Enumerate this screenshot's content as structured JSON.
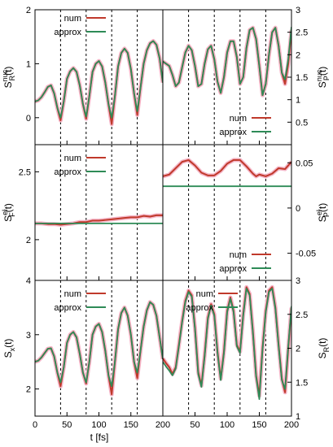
{
  "figure": {
    "xlabel": "t [fs]",
    "colors": {
      "num": "#c0392b",
      "approx": "#2e8b57",
      "glow": "#f4b6c8"
    },
    "vlines": [
      40,
      80,
      120,
      160
    ]
  },
  "chart_data": [
    {
      "id": "p11",
      "type": "line",
      "title": "",
      "ylabel": "S_R^{nuc}(t)",
      "ylabel_parts": {
        "base": "S",
        "sup": "nuc",
        "sub": "R",
        "tail": "(t)"
      },
      "xlim": [
        0,
        200
      ],
      "ylim": [
        -0.5,
        2
      ],
      "yticks": [
        0,
        1,
        2
      ],
      "xticks": [
        0,
        50,
        100,
        150,
        200
      ],
      "grid": false,
      "legend_position": "top-left",
      "series": [
        {
          "name": "num",
          "x": [
            0,
            5,
            10,
            15,
            20,
            25,
            30,
            35,
            40,
            45,
            50,
            55,
            60,
            65,
            70,
            75,
            80,
            85,
            90,
            95,
            100,
            105,
            110,
            115,
            120,
            125,
            130,
            135,
            140,
            145,
            150,
            155,
            160,
            165,
            170,
            175,
            180,
            185,
            190,
            195,
            200
          ],
          "y": [
            0.3,
            0.32,
            0.38,
            0.47,
            0.57,
            0.6,
            0.45,
            0.18,
            -0.05,
            0.3,
            0.72,
            0.86,
            0.92,
            0.85,
            0.6,
            0.25,
            -0.02,
            0.4,
            0.85,
            1.0,
            1.05,
            0.95,
            0.65,
            0.25,
            -0.12,
            0.4,
            0.95,
            1.2,
            1.28,
            1.2,
            0.9,
            0.45,
            0.05,
            0.55,
            1.0,
            1.25,
            1.38,
            1.42,
            1.35,
            1.1,
            0.65
          ]
        },
        {
          "name": "approx",
          "x": [
            0,
            5,
            10,
            15,
            20,
            25,
            30,
            35,
            40,
            45,
            50,
            55,
            60,
            65,
            70,
            75,
            80,
            85,
            90,
            95,
            100,
            105,
            110,
            115,
            120,
            125,
            130,
            135,
            140,
            145,
            150,
            155,
            160,
            165,
            170,
            175,
            180,
            185,
            190,
            195,
            200
          ],
          "y": [
            0.3,
            0.32,
            0.38,
            0.47,
            0.57,
            0.6,
            0.45,
            0.18,
            0.0,
            0.3,
            0.72,
            0.86,
            0.92,
            0.85,
            0.6,
            0.25,
            0.02,
            0.4,
            0.85,
            1.0,
            1.05,
            0.95,
            0.65,
            0.25,
            0.0,
            0.4,
            0.95,
            1.2,
            1.28,
            1.2,
            0.9,
            0.45,
            0.12,
            0.55,
            1.0,
            1.25,
            1.38,
            1.42,
            1.35,
            1.1,
            0.65
          ]
        }
      ]
    },
    {
      "id": "p12",
      "type": "line",
      "title": "",
      "ylabel": "S_P^{nuc}(t)",
      "ylabel_parts": {
        "base": "S",
        "sup": "nuc",
        "sub": "P",
        "tail": "(t)"
      },
      "xlim": [
        0,
        200
      ],
      "ylim": [
        0,
        3
      ],
      "yticks": [
        0.5,
        1,
        1.5,
        2,
        2.5,
        3
      ],
      "xticks": [
        0,
        50,
        100,
        150,
        200
      ],
      "grid": false,
      "legend_position": "bottom-right",
      "series": [
        {
          "name": "num",
          "x": [
            0,
            5,
            10,
            15,
            20,
            25,
            30,
            35,
            40,
            45,
            50,
            55,
            60,
            65,
            70,
            75,
            80,
            85,
            90,
            95,
            100,
            105,
            110,
            115,
            120,
            125,
            130,
            135,
            140,
            145,
            150,
            155,
            160,
            165,
            170,
            175,
            180,
            185,
            190,
            195,
            200
          ],
          "y": [
            1.85,
            1.8,
            1.75,
            1.55,
            1.3,
            1.38,
            1.72,
            2.05,
            2.2,
            2.1,
            1.75,
            1.3,
            1.35,
            1.8,
            2.12,
            2.2,
            1.9,
            1.4,
            1.15,
            1.5,
            2.05,
            2.3,
            2.3,
            1.95,
            1.35,
            1.5,
            2.15,
            2.55,
            2.6,
            2.35,
            1.75,
            1.1,
            1.35,
            2.0,
            2.5,
            2.6,
            2.2,
            1.6,
            1.35,
            1.8,
            2.55
          ]
        },
        {
          "name": "approx",
          "x": [
            0,
            5,
            10,
            15,
            20,
            25,
            30,
            35,
            40,
            45,
            50,
            55,
            60,
            65,
            70,
            75,
            80,
            85,
            90,
            95,
            100,
            105,
            110,
            115,
            120,
            125,
            130,
            135,
            140,
            145,
            150,
            155,
            160,
            165,
            170,
            175,
            180,
            185,
            190,
            195,
            200
          ],
          "y": [
            1.85,
            1.8,
            1.75,
            1.55,
            1.3,
            1.38,
            1.72,
            2.05,
            2.2,
            2.1,
            1.75,
            1.3,
            1.35,
            1.8,
            2.12,
            2.2,
            1.9,
            1.4,
            1.15,
            1.5,
            2.05,
            2.3,
            2.3,
            1.95,
            1.35,
            1.5,
            2.15,
            2.55,
            2.6,
            2.35,
            1.75,
            1.1,
            1.35,
            2.0,
            2.5,
            2.6,
            2.2,
            1.6,
            1.45,
            1.9,
            2.62
          ]
        }
      ]
    },
    {
      "id": "p21",
      "type": "line",
      "title": "",
      "ylabel": "S_F^{el}(t)",
      "ylabel_parts": {
        "base": "S",
        "sup": "el",
        "sub": "F",
        "tail": "(t)"
      },
      "xlim": [
        0,
        200
      ],
      "ylim": [
        1.7,
        2.7
      ],
      "yticks": [
        2,
        2.5
      ],
      "xticks": [
        0,
        50,
        100,
        150,
        200
      ],
      "grid": false,
      "legend_position": "top-left",
      "series": [
        {
          "name": "num",
          "x": [
            0,
            10,
            20,
            30,
            40,
            50,
            60,
            70,
            80,
            90,
            100,
            110,
            120,
            130,
            140,
            150,
            160,
            170,
            180,
            190,
            200
          ],
          "y": [
            2.12,
            2.12,
            2.115,
            2.115,
            2.11,
            2.115,
            2.12,
            2.13,
            2.13,
            2.14,
            2.14,
            2.145,
            2.15,
            2.155,
            2.16,
            2.165,
            2.165,
            2.175,
            2.17,
            2.18,
            2.18
          ]
        },
        {
          "name": "approx",
          "x": [
            0,
            50,
            100,
            150,
            200
          ],
          "y": [
            2.12,
            2.12,
            2.12,
            2.12,
            2.12
          ]
        }
      ]
    },
    {
      "id": "p22",
      "type": "line",
      "title": "",
      "ylabel": "S_P^{el}(t)",
      "ylabel_parts": {
        "base": "S",
        "sup": "el",
        "sub": "P",
        "tail": "(t)"
      },
      "xlim": [
        0,
        200
      ],
      "ylim": [
        -0.08,
        0.07
      ],
      "yticks": [
        -0.05,
        0,
        0.05
      ],
      "xticks": [
        0,
        50,
        100,
        150,
        200
      ],
      "grid": false,
      "legend_position": "bottom-right",
      "series": [
        {
          "name": "num",
          "x": [
            0,
            10,
            20,
            30,
            40,
            50,
            60,
            70,
            80,
            90,
            100,
            110,
            120,
            130,
            140,
            145,
            150,
            160,
            170,
            180,
            190,
            200
          ],
          "y": [
            0.035,
            0.037,
            0.044,
            0.051,
            0.053,
            0.047,
            0.039,
            0.036,
            0.036,
            0.041,
            0.049,
            0.053,
            0.053,
            0.046,
            0.038,
            0.035,
            0.037,
            0.035,
            0.038,
            0.044,
            0.043,
            0.051
          ]
        },
        {
          "name": "approx",
          "x": [
            0,
            50,
            100,
            150,
            200
          ],
          "y": [
            0.024,
            0.024,
            0.024,
            0.024,
            0.024
          ]
        }
      ]
    },
    {
      "id": "p31",
      "type": "line",
      "title": "",
      "ylabel": "S_x(t)",
      "ylabel_parts": {
        "base": "S",
        "sup": "",
        "sub": "x",
        "tail": "(t)"
      },
      "xlim": [
        0,
        200
      ],
      "ylim": [
        1.5,
        4
      ],
      "yticks": [
        2,
        3,
        4
      ],
      "xticks": [
        0,
        50,
        100,
        150,
        200
      ],
      "grid": false,
      "legend_position": "top-left",
      "series": [
        {
          "name": "num",
          "x": [
            0,
            5,
            10,
            15,
            20,
            25,
            30,
            35,
            40,
            45,
            50,
            55,
            60,
            65,
            70,
            75,
            80,
            85,
            90,
            95,
            100,
            105,
            110,
            115,
            120,
            125,
            130,
            135,
            140,
            145,
            150,
            155,
            160,
            165,
            170,
            175,
            180,
            185,
            190,
            195,
            200
          ],
          "y": [
            2.5,
            2.52,
            2.58,
            2.66,
            2.74,
            2.75,
            2.6,
            2.3,
            2.05,
            2.4,
            2.85,
            3.0,
            3.05,
            2.95,
            2.65,
            2.3,
            2.1,
            2.5,
            3.0,
            3.15,
            3.2,
            3.05,
            2.7,
            2.25,
            1.9,
            2.5,
            3.1,
            3.4,
            3.5,
            3.35,
            3.0,
            2.5,
            2.2,
            2.7,
            3.15,
            3.45,
            3.6,
            3.55,
            3.35,
            2.95,
            2.55
          ]
        },
        {
          "name": "approx",
          "x": [
            0,
            5,
            10,
            15,
            20,
            25,
            30,
            35,
            40,
            45,
            50,
            55,
            60,
            65,
            70,
            75,
            80,
            85,
            90,
            95,
            100,
            105,
            110,
            115,
            120,
            125,
            130,
            135,
            140,
            145,
            150,
            155,
            160,
            165,
            170,
            175,
            180,
            185,
            190,
            195,
            200
          ],
          "y": [
            2.5,
            2.52,
            2.58,
            2.66,
            2.74,
            2.75,
            2.6,
            2.3,
            2.12,
            2.4,
            2.85,
            3.0,
            3.05,
            2.95,
            2.65,
            2.3,
            2.12,
            2.5,
            3.0,
            3.15,
            3.2,
            3.05,
            2.7,
            2.25,
            2.05,
            2.5,
            3.1,
            3.4,
            3.5,
            3.35,
            3.0,
            2.5,
            2.3,
            2.7,
            3.15,
            3.45,
            3.6,
            3.55,
            3.35,
            2.95,
            2.55
          ]
        }
      ]
    },
    {
      "id": "p32",
      "type": "line",
      "title": "",
      "ylabel": "S_R(t)",
      "ylabel_parts": {
        "base": "S",
        "sup": "",
        "sub": "R",
        "tail": "(t)"
      },
      "xlim": [
        0,
        200
      ],
      "ylim": [
        1,
        3
      ],
      "yticks": [
        1,
        1.5,
        2,
        2.5,
        3
      ],
      "xticks": [
        0,
        50,
        100,
        150,
        200
      ],
      "grid": false,
      "legend_position": "top-left",
      "series": [
        {
          "name": "num",
          "x": [
            0,
            5,
            10,
            15,
            20,
            25,
            30,
            35,
            40,
            45,
            50,
            55,
            60,
            65,
            70,
            75,
            80,
            85,
            90,
            95,
            100,
            105,
            110,
            115,
            120,
            125,
            130,
            135,
            140,
            145,
            150,
            155,
            160,
            165,
            170,
            175,
            180,
            185,
            190,
            195,
            200
          ],
          "y": [
            1.85,
            1.78,
            1.72,
            1.62,
            1.72,
            2.05,
            2.4,
            2.7,
            2.85,
            2.78,
            2.3,
            1.65,
            1.45,
            1.9,
            2.45,
            2.65,
            2.5,
            1.95,
            1.55,
            1.95,
            2.55,
            2.75,
            2.55,
            2.05,
            1.95,
            2.5,
            2.9,
            2.8,
            2.25,
            1.6,
            1.3,
            2.0,
            2.55,
            2.85,
            2.9,
            2.6,
            2.05,
            1.55,
            1.35,
            2.0,
            2.6
          ]
        },
        {
          "name": "approx",
          "x": [
            0,
            5,
            10,
            15,
            20,
            25,
            30,
            35,
            40,
            45,
            50,
            55,
            60,
            65,
            70,
            75,
            80,
            85,
            90,
            95,
            100,
            105,
            110,
            115,
            120,
            125,
            130,
            135,
            140,
            145,
            150,
            155,
            160,
            165,
            170,
            175,
            180,
            185,
            190,
            195,
            200
          ],
          "y": [
            1.8,
            1.73,
            1.67,
            1.6,
            1.7,
            2.03,
            2.38,
            2.68,
            2.83,
            2.76,
            2.28,
            1.62,
            1.43,
            1.88,
            2.43,
            2.63,
            2.48,
            1.93,
            1.53,
            1.93,
            2.53,
            2.73,
            2.53,
            2.03,
            1.93,
            2.48,
            2.88,
            2.78,
            2.23,
            1.58,
            1.25,
            1.98,
            2.53,
            2.83,
            2.88,
            2.58,
            2.03,
            1.53,
            1.4,
            2.03,
            2.62
          ]
        }
      ]
    }
  ]
}
